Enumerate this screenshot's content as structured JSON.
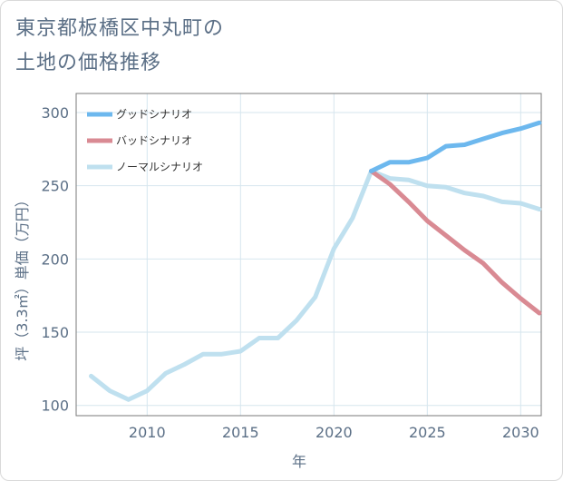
{
  "title_lines": [
    "東京都板橋区中丸町の",
    "土地の価格推移"
  ],
  "chart_data": {
    "type": "line",
    "title": "東京都板橋区中丸町の土地の価格推移",
    "xlabel": "年",
    "ylabel": "坪（3.3㎡）単価（万円）",
    "xlim": [
      2006.2,
      2031.1
    ],
    "ylim": [
      93,
      313
    ],
    "xticks": [
      2010,
      2015,
      2020,
      2025,
      2030
    ],
    "yticks": [
      100,
      150,
      200,
      250,
      300
    ],
    "grid": true,
    "legend_position": "top-left",
    "series": [
      {
        "name": "グッドシナリオ",
        "color": "#6db8ee",
        "x": [
          2022,
          2023,
          2024,
          2025,
          2026,
          2027,
          2028,
          2029,
          2030,
          2031
        ],
        "y": [
          260,
          266,
          266,
          269,
          277,
          278,
          282,
          286,
          289,
          293
        ]
      },
      {
        "name": "バッドシナリオ",
        "color": "#d98a93",
        "x": [
          2022,
          2023,
          2024,
          2025,
          2026,
          2027,
          2028,
          2029,
          2030,
          2031
        ],
        "y": [
          260,
          251,
          239,
          226,
          216,
          206,
          197,
          184,
          173,
          163
        ]
      },
      {
        "name": "ノーマルシナリオ",
        "color": "#bfe0ef",
        "x": [
          2007,
          2008,
          2009,
          2010,
          2011,
          2012,
          2013,
          2014,
          2015,
          2016,
          2017,
          2018,
          2019,
          2020,
          2021,
          2022,
          2023,
          2024,
          2025,
          2026,
          2027,
          2028,
          2029,
          2030,
          2031
        ],
        "y": [
          120,
          110,
          104,
          110,
          122,
          128,
          135,
          135,
          137,
          146,
          146,
          158,
          174,
          207,
          228,
          260,
          255,
          254,
          250,
          249,
          245,
          243,
          239,
          238,
          234
        ]
      }
    ]
  }
}
